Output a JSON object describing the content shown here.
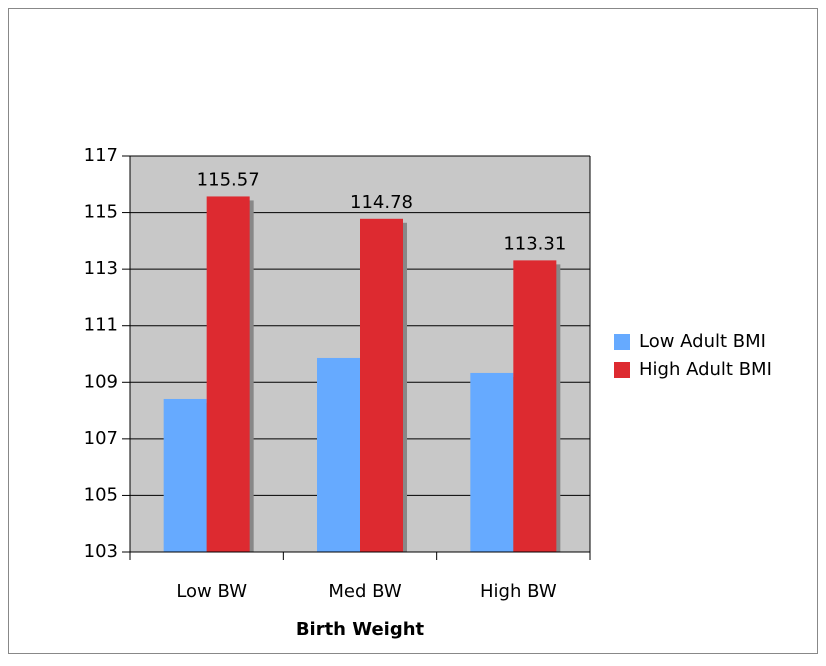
{
  "chart_data": {
    "type": "bar",
    "x_label": "Birth Weight",
    "categories": [
      "Low BW",
      "Med BW",
      "High BW"
    ],
    "series": [
      {
        "name": "Low Adult BMI",
        "color": "#66aaff",
        "values": [
          108.41,
          109.86,
          109.33
        ]
      },
      {
        "name": "High Adult BMI",
        "color": "#dd2a30",
        "values": [
          115.57,
          114.78,
          113.31
        ],
        "labels": true
      }
    ],
    "ylim": [
      103,
      117
    ],
    "yticks": [
      103,
      105,
      107,
      109,
      111,
      113,
      115,
      117
    ],
    "grid": true,
    "legend": "right"
  }
}
